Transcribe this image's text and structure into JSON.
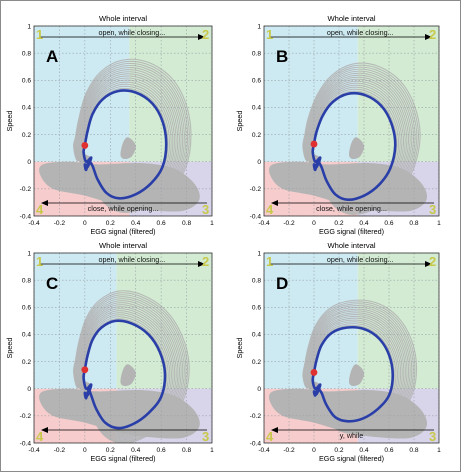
{
  "chart_data": [
    {
      "type": "line",
      "panel_letter": "A",
      "title": "Whole interval",
      "xlabel": "EGG signal (filtered)",
      "ylabel": "Speed",
      "xlim": [
        -0.4,
        1
      ],
      "ylim": [
        -0.4,
        1
      ],
      "xticks": [
        "-0.4",
        "-0.2",
        "0",
        "0.2",
        "0.4",
        "0.6",
        "0.8",
        "1"
      ],
      "yticks": [
        "-0.4",
        "-0.2",
        "0",
        "0.2",
        "0.4",
        "0.6",
        "0.8",
        "1"
      ],
      "grid": true,
      "quadrant_split": {
        "x": 0.35,
        "y": 0
      },
      "quadrant_labels": [
        "1",
        "2",
        "3",
        "4"
      ],
      "annotation_top": "open, while closing...",
      "annotation_bottom": "close, while opening...",
      "start_point": {
        "x": 0,
        "y": 0.12
      },
      "mean_curve": {
        "x": [
          0,
          0.02,
          0.06,
          0.14,
          0.26,
          0.4,
          0.53,
          0.61,
          0.64,
          0.61,
          0.52,
          0.4,
          0.27,
          0.17,
          0.1,
          0.06,
          0.03,
          0.01,
          0,
          0.02,
          0.05,
          0.01,
          -0.01,
          0
        ],
        "y": [
          0.12,
          0.22,
          0.35,
          0.46,
          0.52,
          0.51,
          0.43,
          0.3,
          0.13,
          -0.04,
          -0.16,
          -0.24,
          -0.27,
          -0.23,
          -0.13,
          -0.03,
          0.0,
          -0.06,
          -0.02,
          -0.04,
          0.03,
          0.0,
          0.07,
          0.12
        ]
      }
    },
    {
      "type": "line",
      "panel_letter": "B",
      "title": "Whole interval",
      "xlabel": "EGG signal (filtered)",
      "ylabel": "Speed",
      "xlim": [
        -0.4,
        1
      ],
      "ylim": [
        -0.4,
        1
      ],
      "xticks": [
        "-0.4",
        "-0.2",
        "0",
        "0.2",
        "0.4",
        "0.6",
        "0.8",
        "1"
      ],
      "yticks": [
        "-0.4",
        "-0.2",
        "0",
        "0.2",
        "0.4",
        "0.6",
        "0.8",
        "1"
      ],
      "grid": true,
      "quadrant_split": {
        "x": 0.35,
        "y": 0
      },
      "quadrant_labels": [
        "1",
        "2",
        "3",
        "4"
      ],
      "annotation_top": "open, while closing...",
      "annotation_bottom": "close, while opening...",
      "start_point": {
        "x": 0,
        "y": 0.13
      },
      "mean_curve": {
        "x": [
          0,
          0.02,
          0.07,
          0.15,
          0.27,
          0.41,
          0.54,
          0.62,
          0.65,
          0.61,
          0.52,
          0.4,
          0.27,
          0.17,
          0.1,
          0.06,
          0.03,
          0.01,
          0,
          0.02,
          0.05,
          0.01,
          -0.01,
          0
        ],
        "y": [
          0.13,
          0.22,
          0.34,
          0.44,
          0.5,
          0.49,
          0.41,
          0.28,
          0.12,
          -0.05,
          -0.17,
          -0.25,
          -0.28,
          -0.24,
          -0.14,
          -0.04,
          0.0,
          -0.06,
          -0.02,
          -0.04,
          0.03,
          0.0,
          0.07,
          0.13
        ]
      }
    },
    {
      "type": "line",
      "panel_letter": "C",
      "title": "Whole interval",
      "xlabel": "EGG signal (filtered)",
      "ylabel": "Speed",
      "xlim": [
        -0.4,
        1
      ],
      "ylim": [
        -0.4,
        1
      ],
      "xticks": [
        "-0.4",
        "-0.2",
        "0",
        "0.2",
        "0.4",
        "0.6",
        "0.8",
        "1"
      ],
      "yticks": [
        "-0.4",
        "-0.2",
        "0",
        "0.2",
        "0.4",
        "0.6",
        "0.8",
        "1"
      ],
      "grid": true,
      "quadrant_split": {
        "x": 0.25,
        "y": 0
      },
      "quadrant_labels": [
        "1",
        "2",
        "3",
        "4"
      ],
      "annotation_top": "open, while closing...",
      "start_point": {
        "x": 0,
        "y": 0.14
      },
      "mean_curve": {
        "x": [
          0,
          0.02,
          0.06,
          0.13,
          0.24,
          0.37,
          0.5,
          0.59,
          0.63,
          0.6,
          0.5,
          0.38,
          0.26,
          0.16,
          0.09,
          0.05,
          0.03,
          0.01,
          0,
          0.02,
          0.05,
          0.01,
          -0.01,
          0
        ],
        "y": [
          0.14,
          0.24,
          0.36,
          0.45,
          0.5,
          0.48,
          0.4,
          0.27,
          0.11,
          -0.06,
          -0.18,
          -0.26,
          -0.29,
          -0.25,
          -0.15,
          -0.05,
          -0.01,
          -0.07,
          -0.03,
          -0.05,
          0.03,
          0.0,
          0.08,
          0.14
        ]
      }
    },
    {
      "type": "line",
      "panel_letter": "D",
      "title": "Whole interval",
      "xlabel": "EGG signal (filtered)",
      "ylabel": "Speed",
      "xlim": [
        -0.4,
        1
      ],
      "ylim": [
        -0.4,
        1
      ],
      "xticks": [
        "-0.4",
        "-0.2",
        "0",
        "0.2",
        "0.4",
        "0.6",
        "0.8",
        "1"
      ],
      "yticks": [
        "-0.4",
        "-0.2",
        "0",
        "0.2",
        "0.4",
        "0.6",
        "0.8",
        "1"
      ],
      "grid": true,
      "quadrant_split": {
        "x": 0.35,
        "y": 0
      },
      "quadrant_labels": [
        "1",
        "2",
        "3",
        "4"
      ],
      "annotation_top": "open, while closing...",
      "annotation_bottom": "y, while",
      "start_point": {
        "x": 0,
        "y": 0.12
      },
      "mean_curve": {
        "x": [
          0,
          0.02,
          0.06,
          0.14,
          0.26,
          0.4,
          0.52,
          0.6,
          0.63,
          0.6,
          0.51,
          0.39,
          0.27,
          0.17,
          0.1,
          0.06,
          0.03,
          0.01,
          0,
          0.02,
          0.05,
          0.01,
          -0.01,
          0
        ],
        "y": [
          0.12,
          0.21,
          0.32,
          0.41,
          0.45,
          0.44,
          0.37,
          0.25,
          0.1,
          -0.05,
          -0.15,
          -0.22,
          -0.24,
          -0.21,
          -0.12,
          -0.03,
          0.0,
          -0.05,
          -0.02,
          -0.04,
          0.03,
          0.0,
          0.06,
          0.12
        ]
      }
    }
  ],
  "colors": {
    "quadrant_1": "#cdeaf2",
    "quadrant_2": "#d2ebd2",
    "quadrant_3": "#d8d4ea",
    "quadrant_4": "#f6cccc",
    "cloud": "#b4b4b4",
    "mean_curve": "#2a3ea8",
    "start_point": "#e03030",
    "corner_number": "#c8c84a",
    "grid": "#9aa0a6"
  }
}
